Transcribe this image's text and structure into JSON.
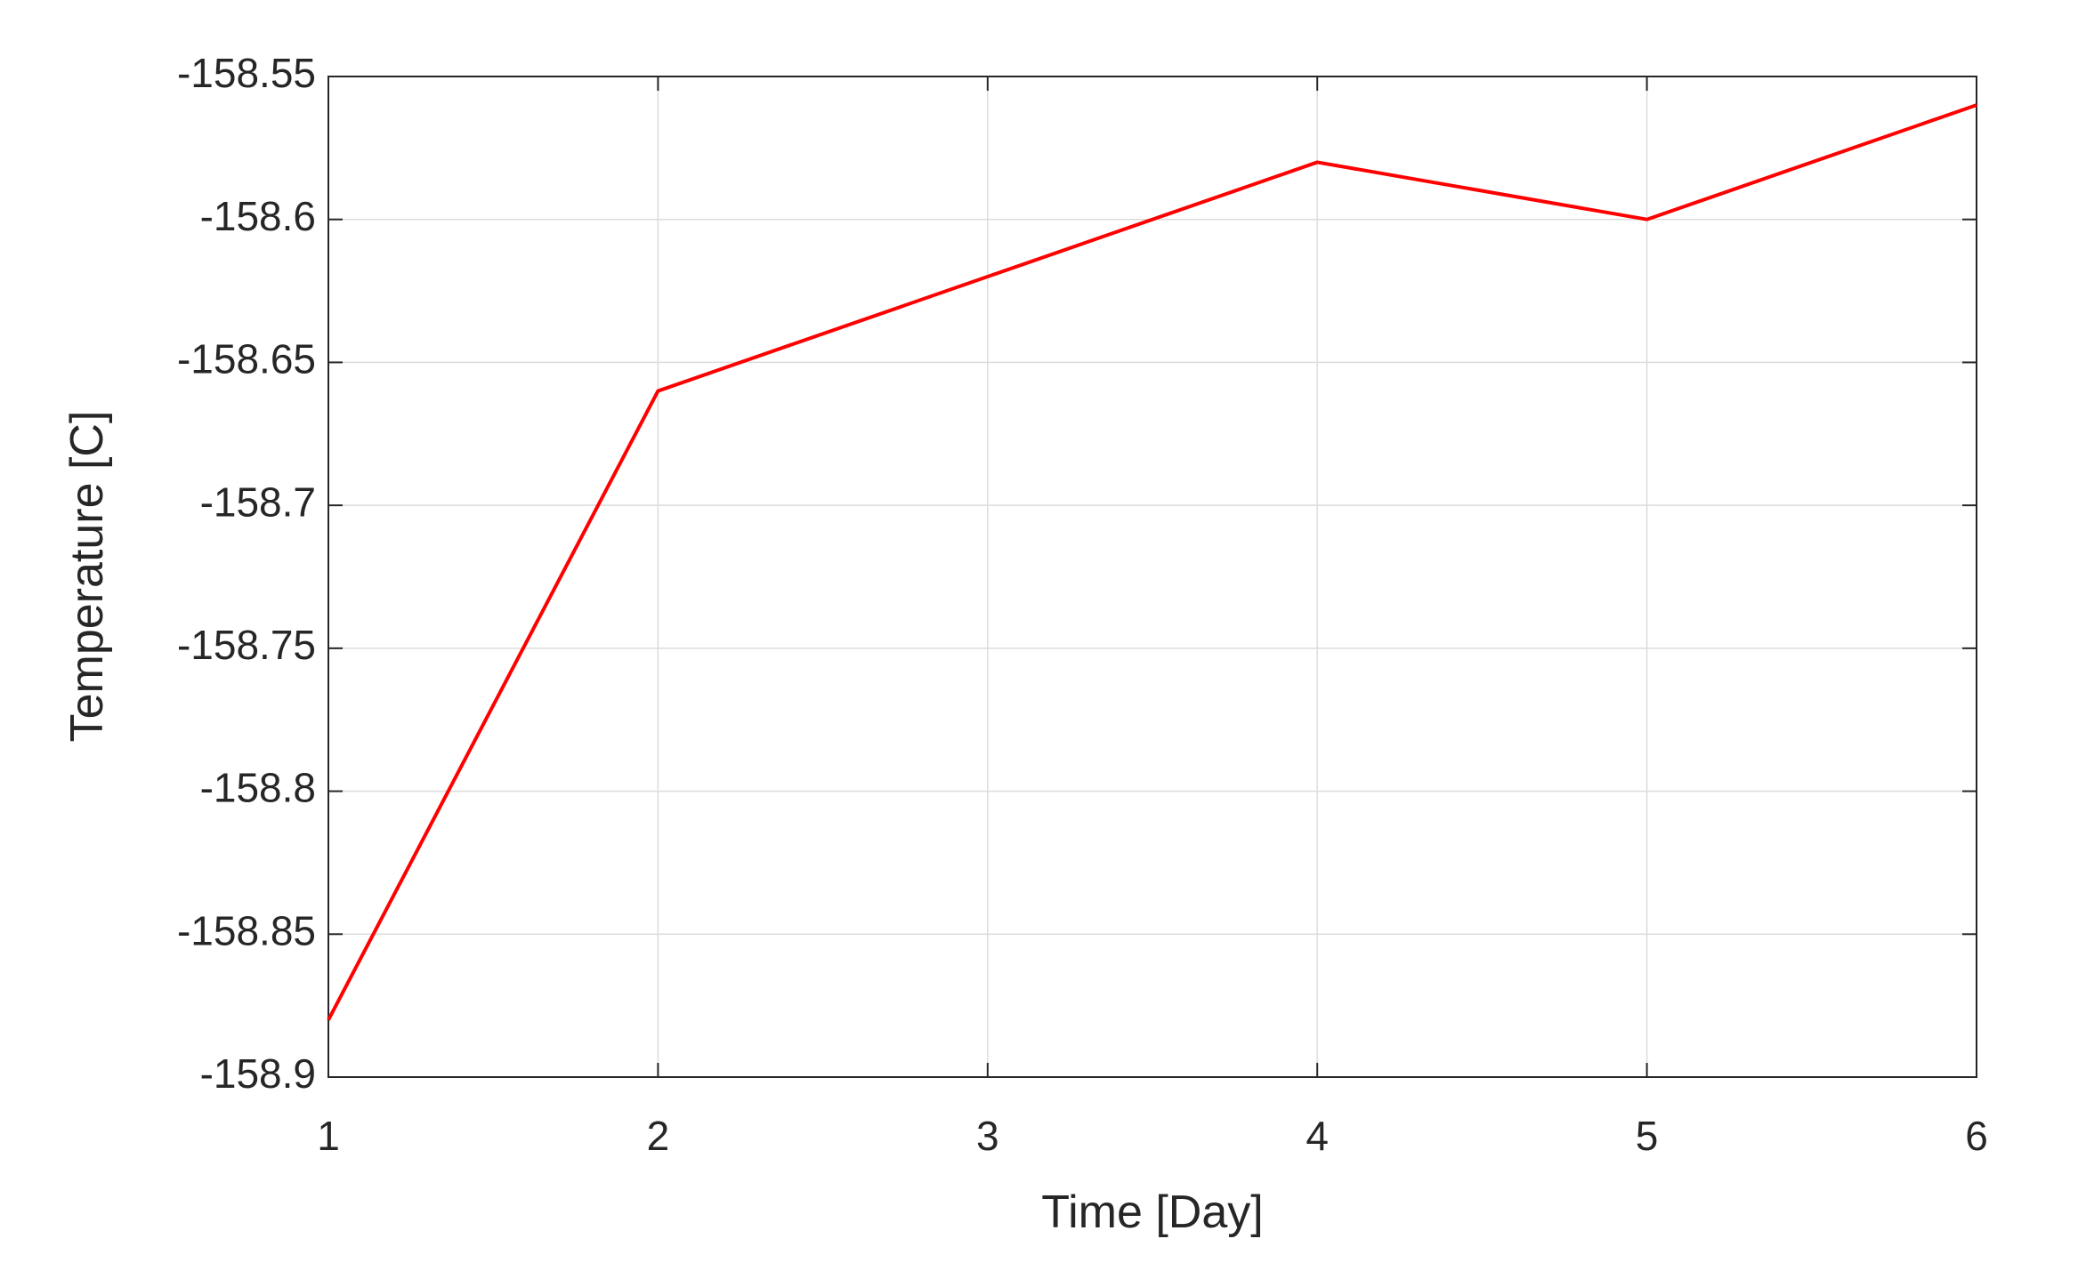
{
  "chart_data": {
    "type": "line",
    "x_label": "Time [Day]",
    "y_label": "Temperature [C]",
    "x": [
      1,
      2,
      3,
      4,
      5,
      6
    ],
    "series": [
      {
        "color": "#ff0000",
        "values": [
          -158.88,
          -158.66,
          -158.62,
          -158.58,
          -158.6,
          -158.56
        ]
      }
    ],
    "xlim": [
      1,
      6
    ],
    "xticks": [
      1,
      2,
      3,
      4,
      5,
      6
    ],
    "ylim": [
      -158.9,
      -158.55
    ],
    "yticks": [
      -158.9,
      -158.85,
      -158.8,
      -158.75,
      -158.7,
      -158.65,
      -158.6,
      -158.55
    ],
    "grid": true
  }
}
